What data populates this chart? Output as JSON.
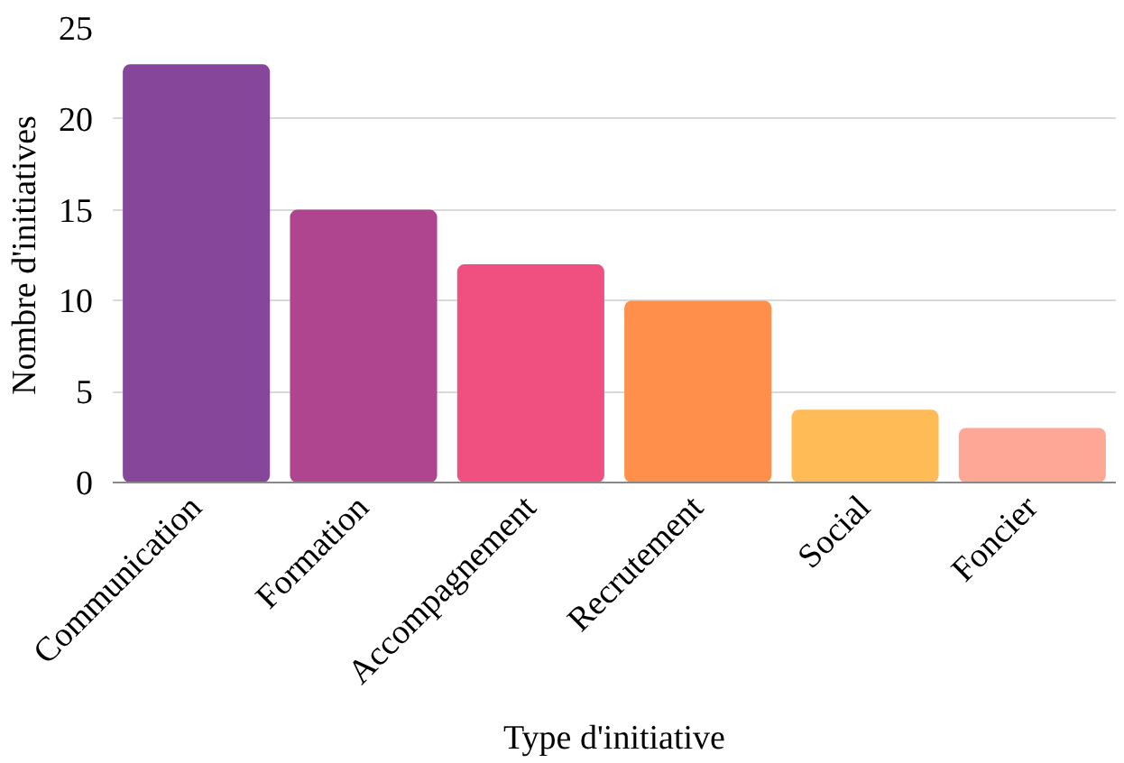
{
  "chart_data": {
    "type": "bar",
    "xlabel": "Type d'initiative",
    "ylabel": "Nombre d'initiatives",
    "categories": [
      "Communication",
      "Formation",
      "Accompagnement",
      "Recrutement",
      "Social",
      "Foncier"
    ],
    "values": [
      23,
      15,
      12,
      10,
      4,
      3
    ],
    "colors": [
      "#86479b",
      "#b0458f",
      "#ef5080",
      "#ff8f4a",
      "#ffbb55",
      "#ffa797"
    ],
    "ylim": [
      0,
      25
    ],
    "yticks": [
      0,
      5,
      10,
      15,
      20,
      25
    ],
    "grid": "y"
  }
}
